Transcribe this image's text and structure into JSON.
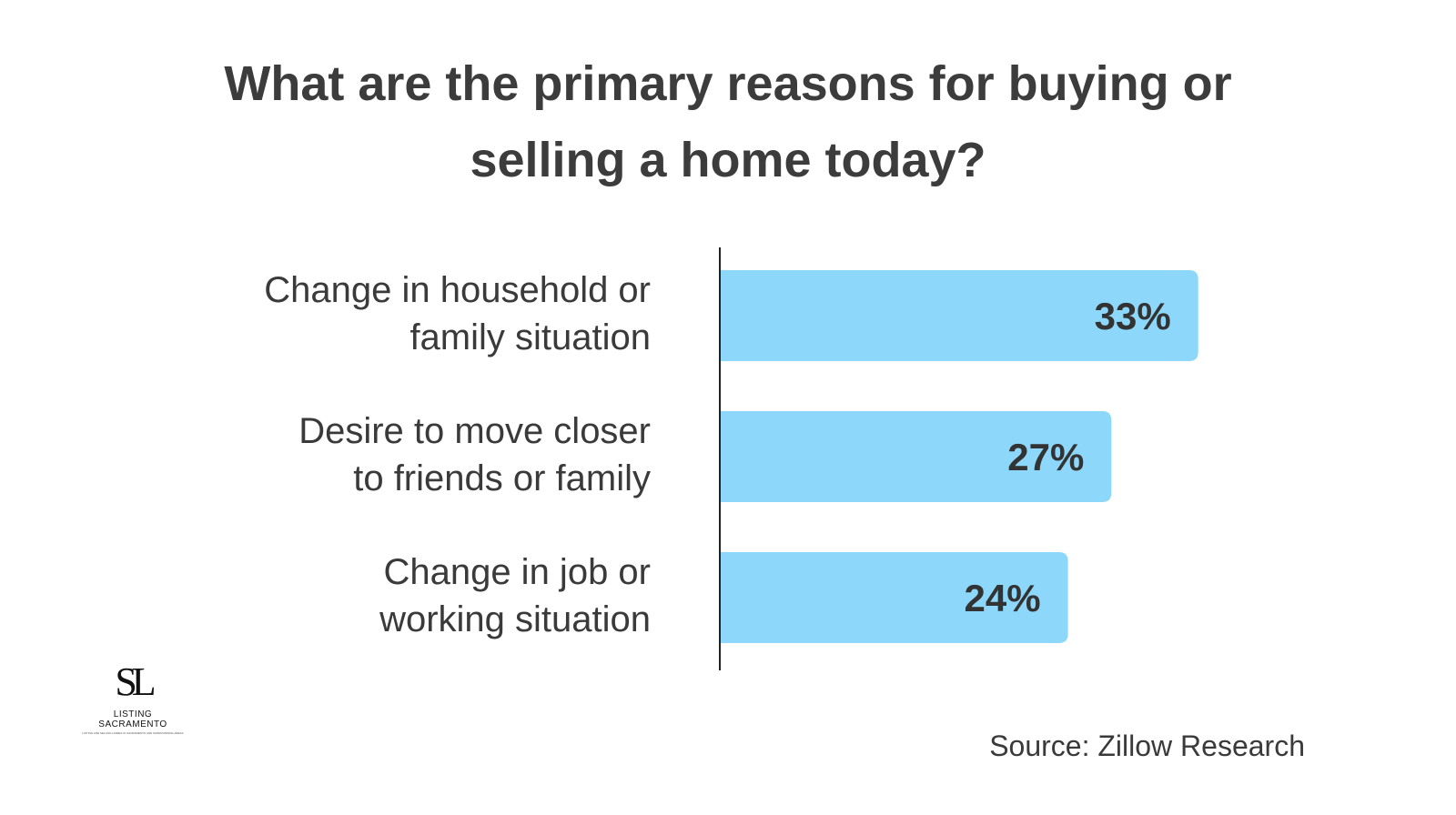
{
  "title": {
    "line1": "What are the primary reasons for buying or",
    "line2": "selling a home today?"
  },
  "chart_data": {
    "type": "bar",
    "orientation": "horizontal",
    "categories": [
      [
        "Change in household or",
        "family situation"
      ],
      [
        "Desire to move closer",
        "to friends or family"
      ],
      [
        "Change in job or",
        "working situation"
      ]
    ],
    "values": [
      33,
      27,
      24
    ],
    "value_labels": [
      "33%",
      "27%",
      "24%"
    ],
    "bar_color": "#8dd8fa",
    "axis_color": "#222222",
    "grid": false,
    "legend": "none"
  },
  "source": "Source: Zillow Research",
  "logo": {
    "mark": "SL",
    "name": "LISTING SACRAMENTO",
    "tagline": "LISTING AND SELLING HOMES IN SACRAMENTO AND SURROUNDING AREAS"
  }
}
